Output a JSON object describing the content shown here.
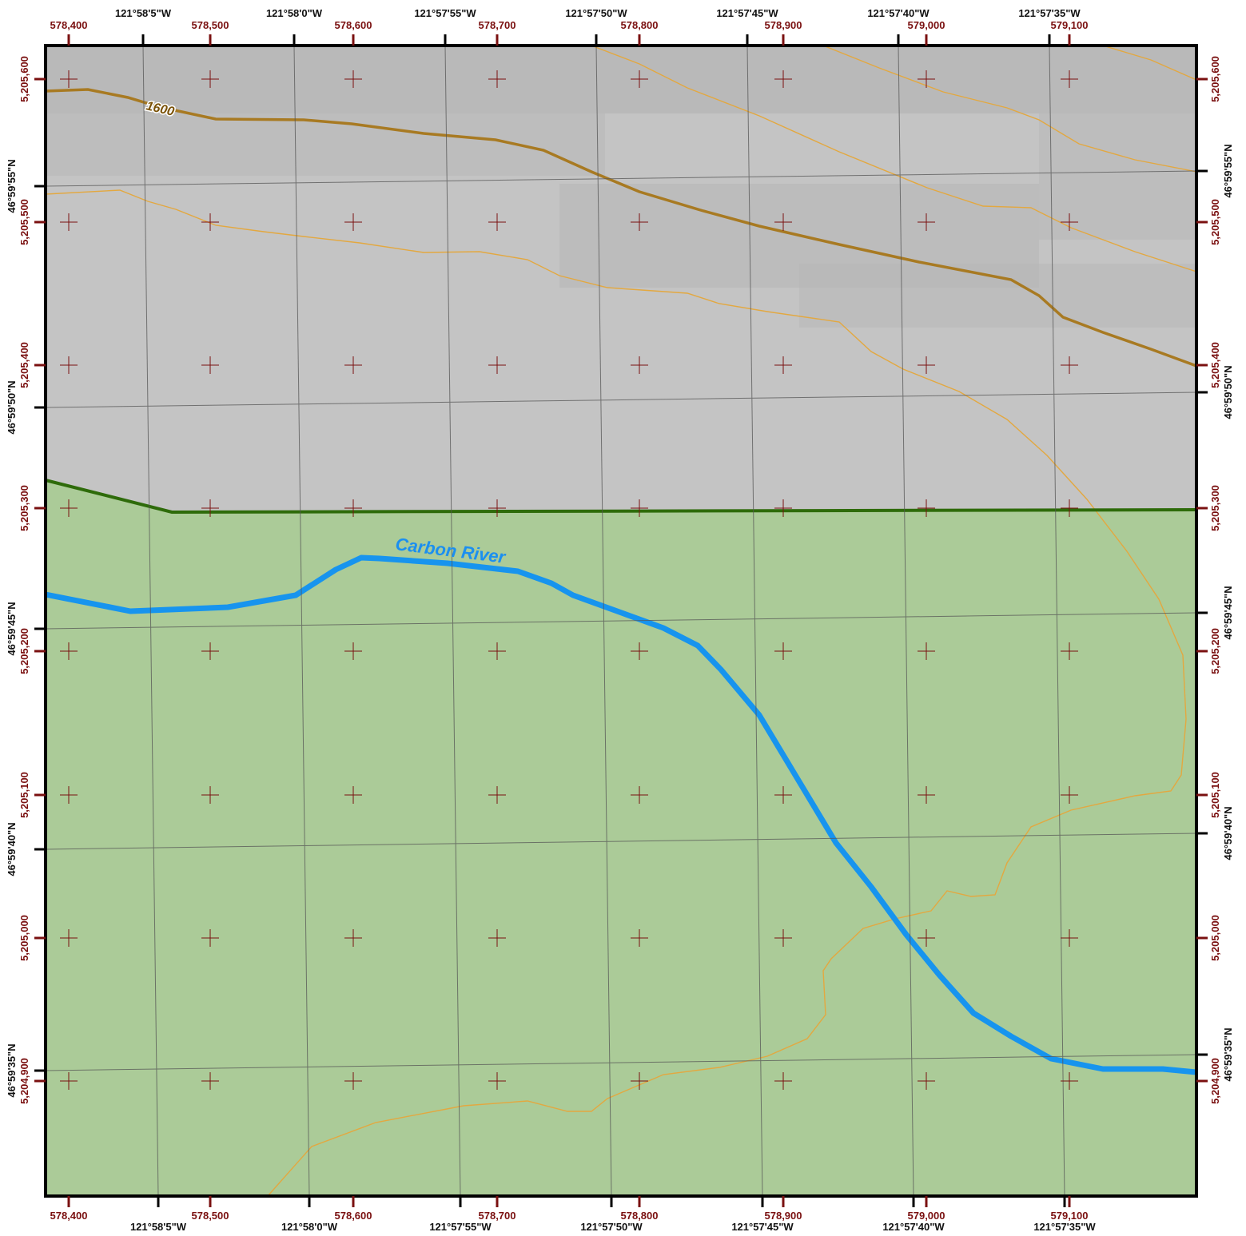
{
  "colors": {
    "terrain_gray": "#c4c4c4",
    "terrain_gray_dark": "#b3b3b3",
    "vegetation_green": "#abcb98",
    "vegetation_boundary": "#2e6b0a",
    "river": "#1794ee",
    "contour_index": "#a87a22",
    "contour_minor": "#e3a840",
    "utm_ticks": "#7a1010",
    "graticule": "#555555"
  },
  "map": {
    "utm_easting_labels": [
      "578,400",
      "578,500",
      "578,600",
      "578,700",
      "578,800",
      "578,900",
      "579,000",
      "579,100"
    ],
    "utm_northing_labels": [
      "5,205,600",
      "5,205,500",
      "5,205,400",
      "5,205,300",
      "5,205,200",
      "5,205,100",
      "5,205,000",
      "5,204,900"
    ],
    "longitude_labels": [
      "121°58'5\"W",
      "121°58'0\"W",
      "121°57'55\"W",
      "121°57'50\"W",
      "121°57'45\"W",
      "121°57'40\"W",
      "121°57'35\"W"
    ],
    "latitude_labels": [
      "46°59'55\"N",
      "46°59'50\"N",
      "46°59'45\"N",
      "46°59'40\"N",
      "46°59'35\"N"
    ],
    "river_name": "Carbon River",
    "contour_label": "1600"
  }
}
